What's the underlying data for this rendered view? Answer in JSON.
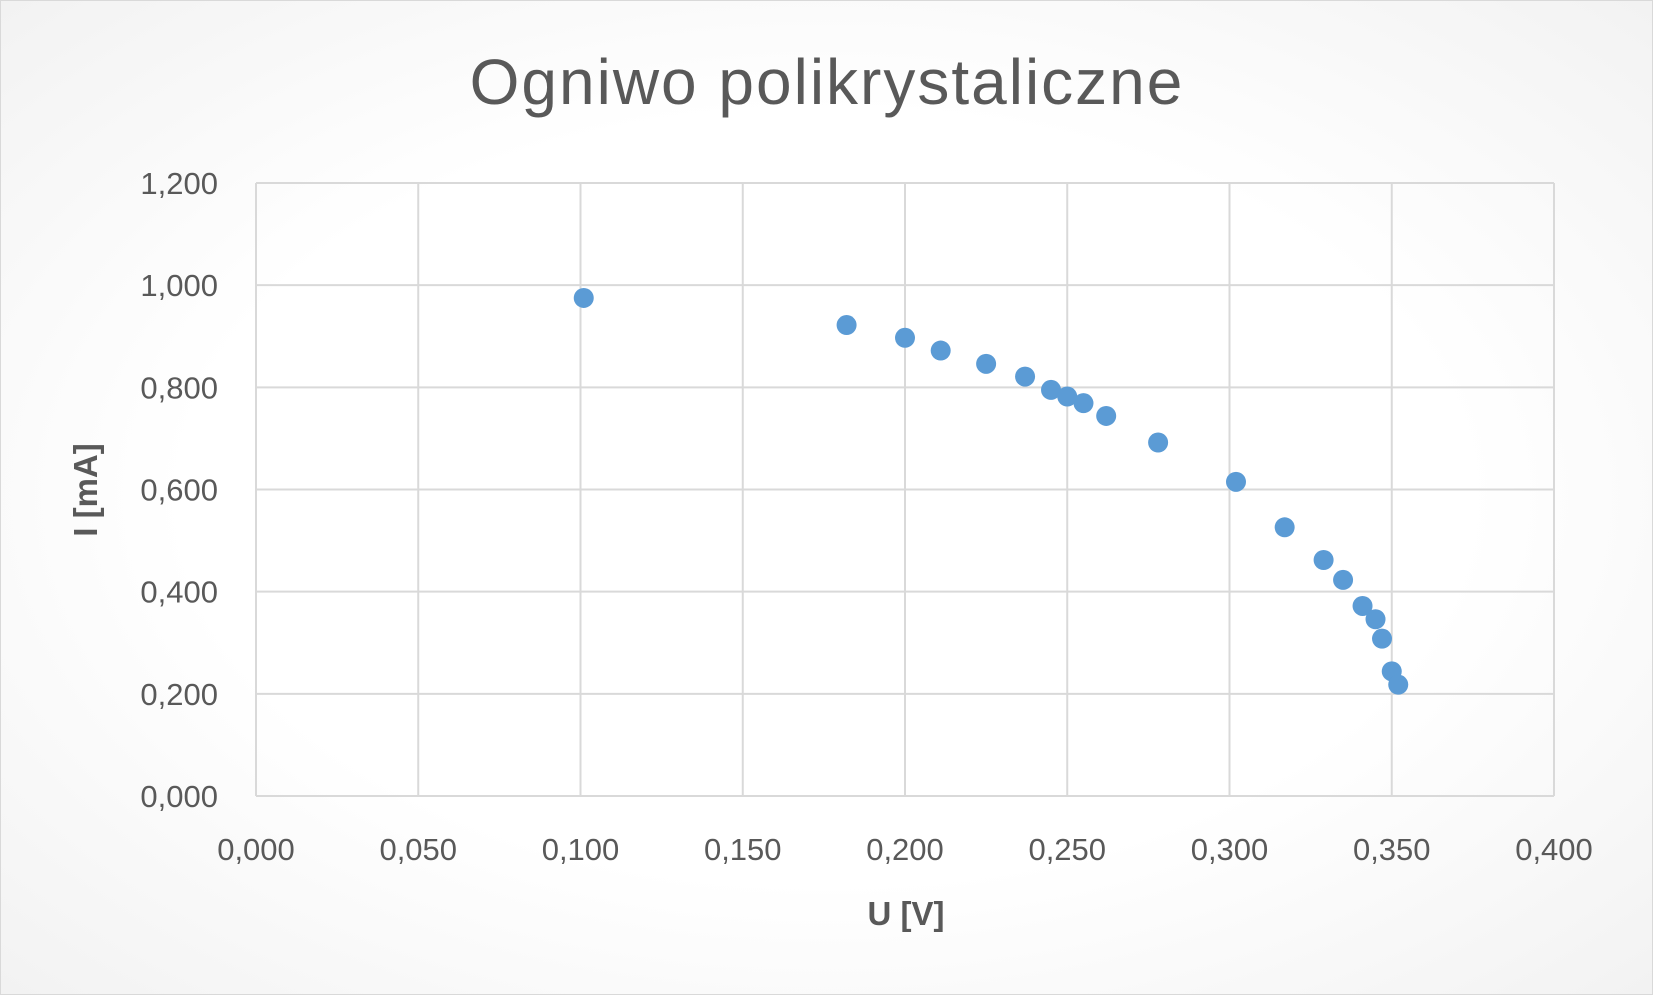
{
  "chart_data": {
    "type": "scatter",
    "title": "Ogniwo polikrystaliczne",
    "xlabel": "U [V]",
    "ylabel": "I [mA]",
    "xlim": [
      0,
      0.4
    ],
    "ylim": [
      0,
      1.2
    ],
    "x_ticks": [
      "0,000",
      "0,050",
      "0,100",
      "0,150",
      "0,200",
      "0,250",
      "0,300",
      "0,350",
      "0,400"
    ],
    "y_ticks": [
      "0,000",
      "0,200",
      "0,400",
      "0,600",
      "0,800",
      "1,000",
      "1,200"
    ],
    "grid": true,
    "legend": "none",
    "marker_color": "#5b9bd5",
    "series": [
      {
        "points": [
          {
            "x": 0.101,
            "y": 0.975
          },
          {
            "x": 0.182,
            "y": 0.922
          },
          {
            "x": 0.2,
            "y": 0.897
          },
          {
            "x": 0.211,
            "y": 0.872
          },
          {
            "x": 0.225,
            "y": 0.846
          },
          {
            "x": 0.237,
            "y": 0.821
          },
          {
            "x": 0.245,
            "y": 0.795
          },
          {
            "x": 0.25,
            "y": 0.782
          },
          {
            "x": 0.255,
            "y": 0.769
          },
          {
            "x": 0.262,
            "y": 0.744
          },
          {
            "x": 0.278,
            "y": 0.692
          },
          {
            "x": 0.302,
            "y": 0.615
          },
          {
            "x": 0.317,
            "y": 0.526
          },
          {
            "x": 0.329,
            "y": 0.462
          },
          {
            "x": 0.335,
            "y": 0.423
          },
          {
            "x": 0.341,
            "y": 0.372
          },
          {
            "x": 0.345,
            "y": 0.346
          },
          {
            "x": 0.347,
            "y": 0.308
          },
          {
            "x": 0.35,
            "y": 0.244
          },
          {
            "x": 0.352,
            "y": 0.218
          }
        ]
      }
    ]
  }
}
